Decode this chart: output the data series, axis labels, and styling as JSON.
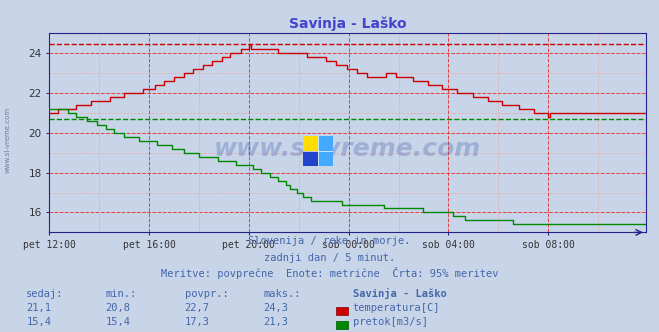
{
  "title": "Savinja - Laško",
  "title_color": "#4444cc",
  "bg_color": "#c8d4e8",
  "plot_bg_color": "#c8d4e8",
  "grid_color_major": "#dd4444",
  "grid_color_minor": "#e8aaaa",
  "axis_color": "#222288",
  "x_ticks": [
    "pet 12:00",
    "pet 16:00",
    "pet 20:00",
    "sob 00:00",
    "sob 04:00",
    "sob 08:00"
  ],
  "x_tick_pos": [
    0,
    48,
    96,
    144,
    192,
    240
  ],
  "xlim": [
    0,
    287
  ],
  "ylim": [
    15.0,
    25.0
  ],
  "y_ticks": [
    16,
    18,
    20,
    22,
    24
  ],
  "temp_color": "#cc0000",
  "flow_color": "#008800",
  "hline_temp_y": 24.45,
  "hline_flow_y": 20.7,
  "watermark": "www.si-vreme.com",
  "subtitle1": "Slovenija / reke in morje.",
  "subtitle2": "zadnji dan / 5 minut.",
  "subtitle3": "Meritve: povprečne  Enote: metrične  Črta: 95% meritev",
  "subtitle_color": "#4466aa",
  "table_header": [
    "sedaj:",
    "min.:",
    "povpr.:",
    "maks.:",
    "Savinja - Laško"
  ],
  "table_row1": [
    "21,1",
    "20,8",
    "22,7",
    "24,3",
    "temperatura[C]"
  ],
  "table_row2": [
    "15,4",
    "15,4",
    "17,3",
    "21,3",
    "pretok[m3/s]"
  ],
  "table_color": "#4466aa",
  "legend_temp_color": "#cc0000",
  "legend_flow_color": "#008800"
}
